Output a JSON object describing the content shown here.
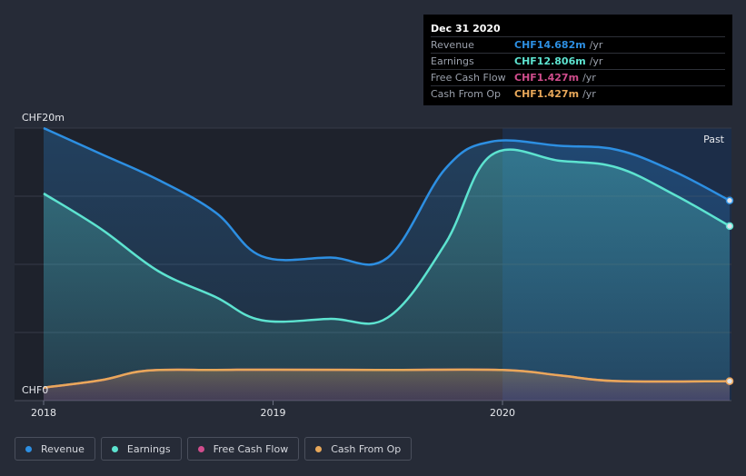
{
  "chart_data": {
    "type": "area",
    "currency_unit": "CHF",
    "y_top_label": "CHF20m",
    "y_bottom_label": "CHF0",
    "ylim": [
      0,
      20
    ],
    "xlim": [
      2018.0,
      2020.99
    ],
    "x_ticks": [
      {
        "value": 2018,
        "label": "2018"
      },
      {
        "value": 2019,
        "label": "2019"
      },
      {
        "value": 2020,
        "label": "2020"
      }
    ],
    "past_label": "Past",
    "highlight_start": 2020.0,
    "series": [
      {
        "name": "Revenue",
        "color": "#2d8fe2",
        "points": [
          [
            2018.0,
            20.0
          ],
          [
            2018.25,
            18.1
          ],
          [
            2018.5,
            16.2
          ],
          [
            2018.75,
            13.8
          ],
          [
            2018.95,
            10.6
          ],
          [
            2019.25,
            10.5
          ],
          [
            2019.5,
            10.5
          ],
          [
            2019.75,
            17.0
          ],
          [
            2019.95,
            19.0
          ],
          [
            2020.25,
            18.7
          ],
          [
            2020.5,
            18.4
          ],
          [
            2020.75,
            16.8
          ],
          [
            2020.99,
            14.682
          ]
        ]
      },
      {
        "name": "Earnings",
        "color": "#5de3d0",
        "points": [
          [
            2018.0,
            15.2
          ],
          [
            2018.25,
            12.6
          ],
          [
            2018.5,
            9.5
          ],
          [
            2018.75,
            7.6
          ],
          [
            2018.95,
            5.9
          ],
          [
            2019.25,
            6.0
          ],
          [
            2019.5,
            6.1
          ],
          [
            2019.75,
            11.5
          ],
          [
            2019.95,
            18.0
          ],
          [
            2020.25,
            17.6
          ],
          [
            2020.5,
            17.1
          ],
          [
            2020.75,
            15.1
          ],
          [
            2020.99,
            12.806
          ]
        ]
      },
      {
        "name": "Free Cash Flow",
        "color": "#d14d8d",
        "points": [
          [
            2018.0,
            0.95
          ],
          [
            2018.25,
            1.5
          ],
          [
            2018.45,
            2.2
          ],
          [
            2018.75,
            2.25
          ],
          [
            2019.0,
            2.27
          ],
          [
            2019.5,
            2.25
          ],
          [
            2020.0,
            2.25
          ],
          [
            2020.25,
            1.85
          ],
          [
            2020.5,
            1.43
          ],
          [
            2020.99,
            1.427
          ]
        ]
      },
      {
        "name": "Cash From Op",
        "color": "#e8a85a",
        "points": [
          [
            2018.0,
            0.95
          ],
          [
            2018.25,
            1.5
          ],
          [
            2018.45,
            2.2
          ],
          [
            2018.75,
            2.25
          ],
          [
            2019.0,
            2.27
          ],
          [
            2019.5,
            2.25
          ],
          [
            2020.0,
            2.25
          ],
          [
            2020.25,
            1.85
          ],
          [
            2020.5,
            1.43
          ],
          [
            2020.99,
            1.427
          ]
        ]
      }
    ]
  },
  "tooltip": {
    "date": "Dec 31 2020",
    "rows": [
      {
        "label": "Revenue",
        "value": "CHF14.682m",
        "unit": "/yr",
        "color": "#2d8fe2"
      },
      {
        "label": "Earnings",
        "value": "CHF12.806m",
        "unit": "/yr",
        "color": "#5de3d0"
      },
      {
        "label": "Free Cash Flow",
        "value": "CHF1.427m",
        "unit": "/yr",
        "color": "#d14d8d"
      },
      {
        "label": "Cash From Op",
        "value": "CHF1.427m",
        "unit": "/yr",
        "color": "#e8a85a"
      }
    ]
  },
  "legend": [
    {
      "label": "Revenue",
      "color": "#2d8fe2"
    },
    {
      "label": "Earnings",
      "color": "#5de3d0"
    },
    {
      "label": "Free Cash Flow",
      "color": "#d14d8d"
    },
    {
      "label": "Cash From Op",
      "color": "#e8a85a"
    }
  ]
}
